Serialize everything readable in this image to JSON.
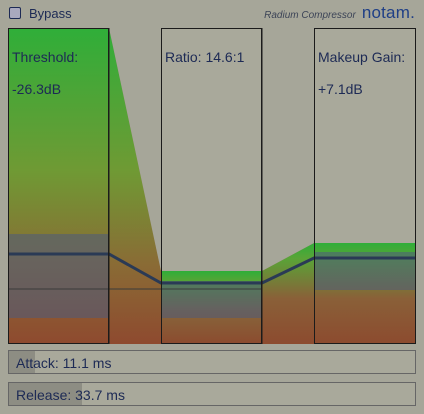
{
  "bypass": {
    "label": "Bypass",
    "checked": false
  },
  "brand": {
    "plugin_name": "Radium Compressor",
    "logo": "notam."
  },
  "parameters": {
    "threshold": {
      "label": "Threshold:",
      "value": "-26.3dB"
    },
    "ratio": {
      "label": "Ratio: 14.6:1"
    },
    "makeup_gain": {
      "label": "Makeup Gain:",
      "value": "+7.1dB"
    }
  },
  "sliders": {
    "attack": {
      "label": "Attack: 11.1 ms",
      "fill_fraction": 0.065
    },
    "release": {
      "label": "Release: 33.7 ms",
      "fill_fraction": 0.18
    }
  },
  "colors": {
    "background": "#a6a699",
    "text": "#1d2a55",
    "green": "#2fae39",
    "brown": "#8a4a2e",
    "blue_overlay": "#4c5b7d"
  }
}
